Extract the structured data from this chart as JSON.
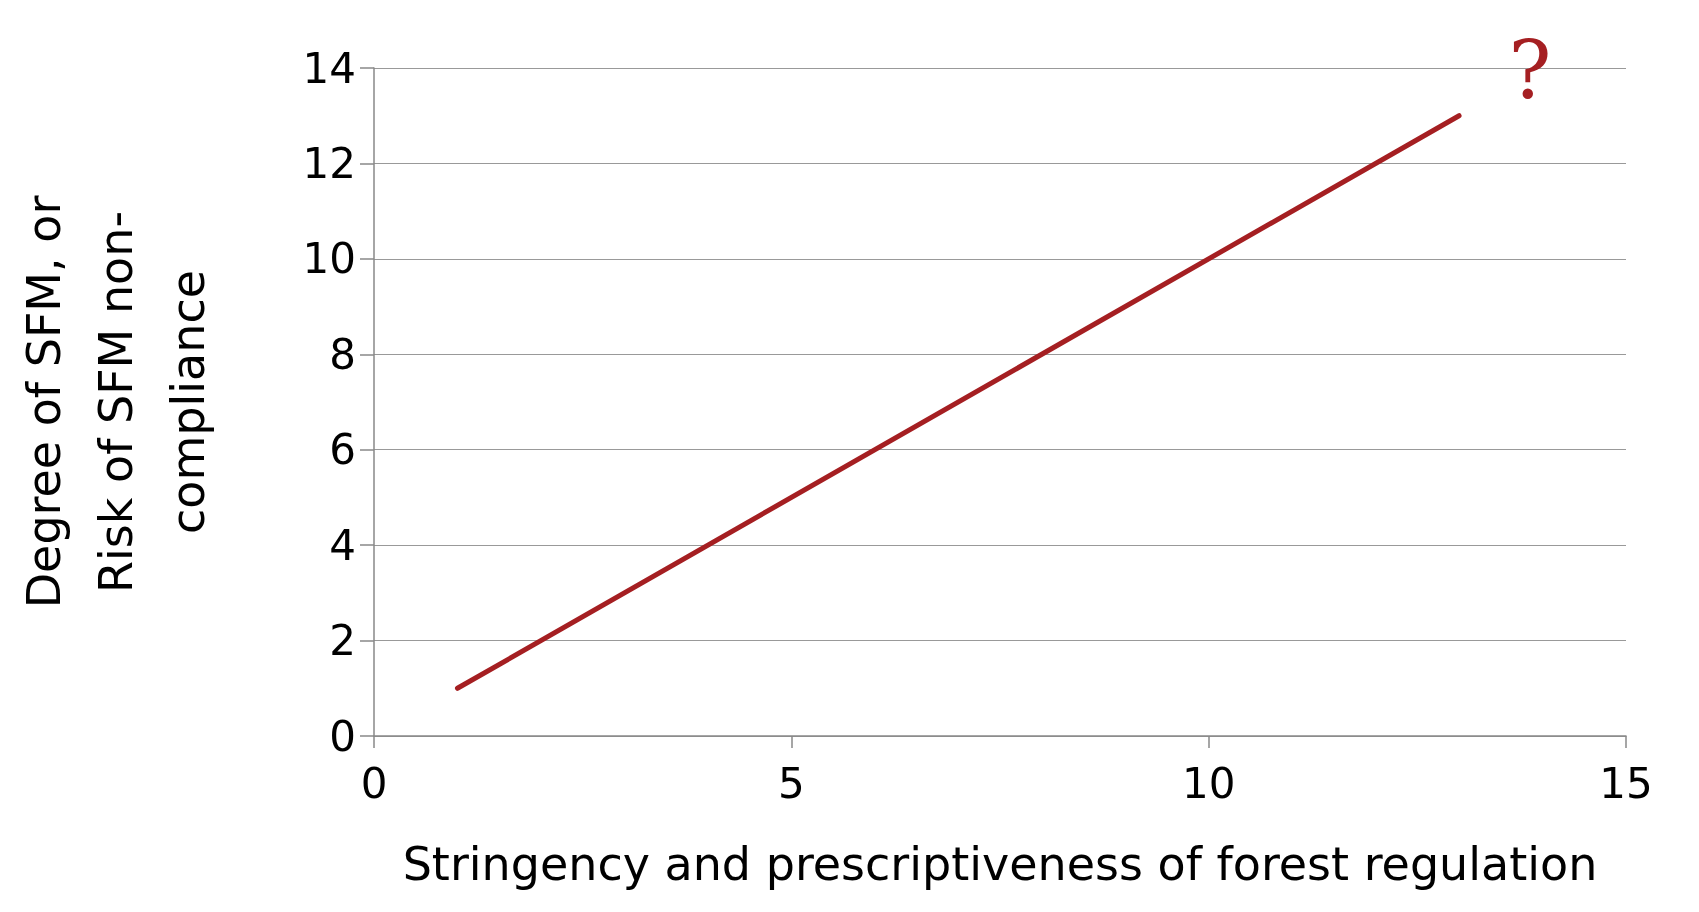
{
  "chart_data": {
    "type": "line",
    "xlabel": "Stringency and prescriptiveness of forest regulation",
    "ylabel": "Degree of SFM, or\nRisk of SFM non-\ncompliance",
    "x": [
      1,
      13
    ],
    "series": [
      {
        "color": "#a51f22",
        "values": [
          1,
          13
        ]
      }
    ],
    "xlim": [
      0,
      15
    ],
    "xticks": [
      0,
      5,
      10,
      15
    ],
    "ylim": [
      0,
      14
    ],
    "yticks": [
      0,
      2,
      4,
      6,
      8,
      10,
      12,
      14
    ],
    "grid": "y",
    "marker": "none",
    "line_style": "solid",
    "annotations": [
      "?"
    ]
  }
}
